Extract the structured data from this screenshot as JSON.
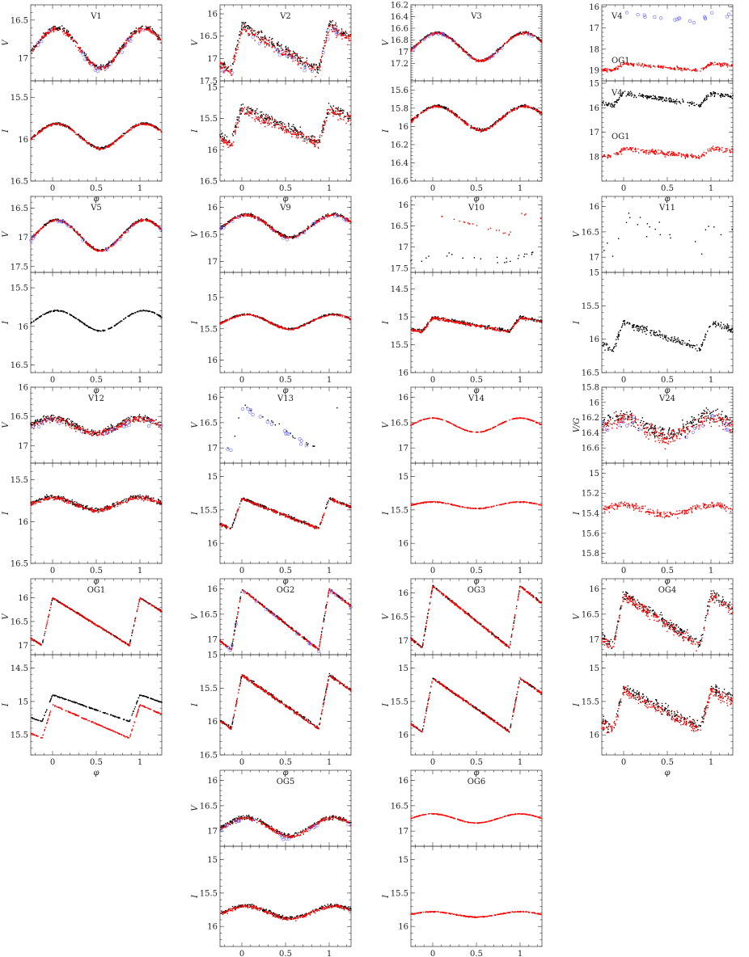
{
  "figure": {
    "phase_axis_label": "φ",
    "phase_ticks": [
      0,
      0.5,
      1
    ],
    "phase_tick_labels": [
      "0",
      "0.5",
      "1"
    ],
    "phase_range": [
      -0.25,
      1.25
    ]
  },
  "colors": {
    "dataset_a": "#000000",
    "dataset_b": "#ff0000",
    "dataset_c": "#6666ff"
  },
  "chart_data": [
    {
      "id": "V1",
      "type": "scatter",
      "title": "V1",
      "top": {
        "ylabel": "V",
        "ylim": [
          17.3,
          16.3
        ],
        "ticks": [
          16.5,
          17
        ],
        "tick_labels": [
          "16.5",
          "17"
        ],
        "mean": 16.85,
        "amp": 0.5,
        "shape": "eclipse",
        "noise": 0.05,
        "series": [
          "black",
          "red",
          "blue"
        ]
      },
      "bottom": {
        "ylabel": "I",
        "ylim": [
          16.5,
          15.3
        ],
        "ticks": [
          15.5,
          16,
          16.5
        ],
        "tick_labels": [
          "15.5",
          "16",
          "16.5"
        ],
        "mean": 15.95,
        "amp": 0.28,
        "shape": "eclipse",
        "noise": 0.02,
        "series": [
          "black",
          "red"
        ]
      }
    },
    {
      "id": "V2",
      "type": "scatter",
      "title": "V2",
      "top": {
        "ylabel": "V",
        "ylim": [
          17.5,
          15.8
        ],
        "ticks": [
          16,
          16.5,
          17,
          17.5
        ],
        "tick_labels": [
          "16",
          "16.5",
          "17",
          "17.5"
        ],
        "mean": 16.75,
        "amp": 1.0,
        "shape": "rrab",
        "noise": 0.18,
        "series": [
          "black",
          "red",
          "blue"
        ]
      },
      "bottom": {
        "ylabel": "I",
        "ylim": [
          16.5,
          14.9
        ],
        "ticks": [
          15,
          15.5,
          16,
          16.5
        ],
        "tick_labels": [
          "15",
          "15.5",
          "16",
          "16.5"
        ],
        "mean": 15.6,
        "amp": 0.55,
        "shape": "rrab",
        "noise": 0.12,
        "series": [
          "black",
          "red"
        ]
      }
    },
    {
      "id": "V3",
      "type": "scatter",
      "title": "V3",
      "top": {
        "ylabel": "V",
        "ylim": [
          17.5,
          16.2
        ],
        "ticks": [
          16.2,
          16.4,
          16.6,
          16.8,
          17,
          17.2
        ],
        "tick_labels": [
          "16.2",
          "16.4",
          "16.6",
          "16.8",
          "17",
          "17.2"
        ],
        "mean": 16.9,
        "amp": 0.45,
        "shape": "eclipse",
        "noise": 0.03,
        "series": [
          "black",
          "red",
          "blue"
        ]
      },
      "bottom": {
        "ylabel": "I",
        "ylim": [
          16.6,
          15.5
        ],
        "ticks": [
          15.6,
          15.8,
          16,
          16.2,
          16.4,
          16.6
        ],
        "tick_labels": [
          "15.6",
          "15.8",
          "16",
          "16.2",
          "16.4",
          "16.6"
        ],
        "mean": 15.9,
        "amp": 0.25,
        "shape": "eclipse",
        "noise": 0.02,
        "series": [
          "black",
          "red"
        ]
      }
    },
    {
      "id": "V4",
      "type": "scatter",
      "title": "V4",
      "subtitle": "OG1",
      "bottom_title": "V4",
      "bottom_subtitle": "OG1",
      "top": {
        "ylabel": "",
        "ylim": [
          19.5,
          15.9
        ],
        "ticks": [
          16,
          17,
          18,
          19
        ],
        "tick_labels": [
          "16",
          "17",
          "18",
          "19"
        ],
        "mean": 16.5,
        "amp": 0.4,
        "shape": "rrab",
        "noise": 0.15,
        "series": [
          "blue"
        ],
        "second": {
          "mean": 18.85,
          "amp": 0.35,
          "shape": "rrab",
          "noise": 0.12,
          "series": [
            "red"
          ]
        }
      },
      "bottom": {
        "ylabel": "",
        "ylim": [
          19,
          14.9
        ],
        "ticks": [
          15,
          16,
          17,
          18
        ],
        "tick_labels": [
          "15",
          "16",
          "17",
          "18"
        ],
        "mean": 15.65,
        "amp": 0.5,
        "shape": "rrab",
        "noise": 0.15,
        "series": [
          "black"
        ],
        "second": {
          "mean": 17.85,
          "amp": 0.35,
          "shape": "rrab",
          "noise": 0.15,
          "series": [
            "red"
          ]
        }
      }
    },
    {
      "id": "V5",
      "type": "scatter",
      "title": "V5",
      "top": {
        "ylabel": "V",
        "ylim": [
          17.6,
          16.3
        ],
        "ticks": [
          16.5,
          17,
          17.5
        ],
        "tick_labels": [
          "16.5",
          "17",
          "17.5"
        ],
        "mean": 16.95,
        "amp": 0.5,
        "shape": "eclipse",
        "noise": 0.03,
        "series": [
          "black",
          "red",
          "blue"
        ]
      },
      "bottom": {
        "ylabel": "I",
        "ylim": [
          16.6,
          15.3
        ],
        "ticks": [
          15.5,
          16,
          16.5
        ],
        "tick_labels": [
          "15.5",
          "16",
          "16.5"
        ],
        "mean": 15.92,
        "amp": 0.25,
        "shape": "eclipse",
        "noise": 0.01,
        "series": [
          "black"
        ]
      }
    },
    {
      "id": "V9",
      "type": "scatter",
      "title": "V9",
      "top": {
        "ylabel": "V",
        "ylim": [
          17.2,
          15.8
        ],
        "ticks": [
          16,
          16.5,
          17
        ],
        "tick_labels": [
          "16",
          "16.5",
          "17"
        ],
        "mean": 16.33,
        "amp": 0.4,
        "shape": "eclipse",
        "noise": 0.04,
        "series": [
          "black",
          "red",
          "blue"
        ]
      },
      "bottom": {
        "ylabel": "I",
        "ylim": [
          16.2,
          14.6
        ],
        "ticks": [
          15,
          15.5,
          16
        ],
        "tick_labels": [
          "15",
          "15.5",
          "16"
        ],
        "mean": 15.38,
        "amp": 0.22,
        "shape": "eclipse",
        "noise": 0.02,
        "series": [
          "black",
          "red"
        ]
      }
    },
    {
      "id": "V10",
      "type": "scatter",
      "title": "V10",
      "top": {
        "ylabel": "",
        "ylim": [
          17.6,
          15.8
        ],
        "ticks": [
          16,
          16.5,
          17,
          17.5
        ],
        "tick_labels": [
          "16",
          "16.5",
          "17",
          "17.5"
        ],
        "mean": 16.45,
        "amp": 0.5,
        "shape": "rrab",
        "noise": 0.05,
        "series": [
          "red"
        ],
        "sparse": true,
        "second": {
          "mean": 17.25,
          "amp": 0.2,
          "shape": "rrab",
          "noise": 0.1,
          "series": [
            "black"
          ],
          "sparse": true
        }
      },
      "bottom": {
        "ylabel": "I",
        "ylim": [
          16,
          14.2
        ],
        "ticks": [
          14.5,
          15,
          15.5,
          16
        ],
        "tick_labels": [
          "14.5",
          "15",
          "15.5",
          "16"
        ],
        "mean": 15.13,
        "amp": 0.25,
        "shape": "rrab",
        "noise": 0.04,
        "series": [
          "black",
          "red"
        ]
      }
    },
    {
      "id": "V11",
      "type": "scatter",
      "title": "V11",
      "top": {
        "ylabel": "V",
        "ylim": [
          17.3,
          15.8
        ],
        "ticks": [
          16,
          16.5,
          17
        ],
        "tick_labels": [
          "16",
          "16.5",
          "17"
        ],
        "mean": 16.55,
        "amp": 0.6,
        "shape": "rrab",
        "noise": 0.35,
        "series": [
          "black"
        ],
        "sparse": true
      },
      "bottom": {
        "ylabel": "I",
        "ylim": [
          16.5,
          15
        ],
        "ticks": [
          15,
          15.5,
          16,
          16.5
        ],
        "tick_labels": [
          "15",
          "15.5",
          "16",
          "16.5"
        ],
        "mean": 15.95,
        "amp": 0.4,
        "shape": "rrab",
        "noise": 0.08,
        "series": [
          "black"
        ]
      }
    },
    {
      "id": "V12",
      "type": "scatter",
      "title": "V12",
      "top": {
        "ylabel": "V",
        "ylim": [
          17.3,
          16
        ],
        "ticks": [
          16,
          16.5,
          17
        ],
        "tick_labels": [
          "16",
          "16.5",
          "17"
        ],
        "mean": 16.65,
        "amp": 0.25,
        "shape": "sine",
        "noise": 0.08,
        "series": [
          "black",
          "red",
          "blue"
        ]
      },
      "bottom": {
        "ylabel": "I",
        "ylim": [
          16.5,
          15.3
        ],
        "ticks": [
          15.5,
          16,
          16.5
        ],
        "tick_labels": [
          "15.5",
          "16",
          "16.5"
        ],
        "mean": 15.78,
        "amp": 0.15,
        "shape": "sine",
        "noise": 0.04,
        "series": [
          "black",
          "red"
        ]
      }
    },
    {
      "id": "V13",
      "type": "scatter",
      "title": "V13",
      "top": {
        "ylabel": "V",
        "ylim": [
          17.3,
          15.8
        ],
        "ticks": [
          16,
          16.5,
          17
        ],
        "tick_labels": [
          "16",
          "16.5",
          "17"
        ],
        "mean": 16.6,
        "amp": 0.9,
        "shape": "rrab",
        "noise": 0.08,
        "series": [
          "black",
          "blue"
        ],
        "sparse": true
      },
      "bottom": {
        "ylabel": "I",
        "ylim": [
          16.3,
          14.8
        ],
        "ticks": [
          15,
          15.5,
          16
        ],
        "tick_labels": [
          "15",
          "15.5",
          "16"
        ],
        "mean": 15.55,
        "amp": 0.45,
        "shape": "rrab",
        "noise": 0.03,
        "series": [
          "black",
          "red"
        ]
      }
    },
    {
      "id": "V14",
      "type": "scatter",
      "title": "V14",
      "top": {
        "ylabel": "V",
        "ylim": [
          17.3,
          15.8
        ],
        "ticks": [
          16,
          16.5,
          17
        ],
        "tick_labels": [
          "16",
          "16.5",
          "17"
        ],
        "mean": 16.55,
        "amp": 0.28,
        "shape": "sine",
        "noise": 0.01,
        "series": [
          "red"
        ]
      },
      "bottom": {
        "ylabel": "I",
        "ylim": [
          16.3,
          14.8
        ],
        "ticks": [
          15,
          15.5,
          16
        ],
        "tick_labels": [
          "15",
          "15.5",
          "16"
        ],
        "mean": 15.43,
        "amp": 0.1,
        "shape": "sine",
        "noise": 0.01,
        "series": [
          "red"
        ]
      }
    },
    {
      "id": "V24",
      "type": "scatter",
      "title": "V24",
      "top": {
        "ylabel": "V/G",
        "ylim": [
          16.8,
          15.8
        ],
        "ticks": [
          15.8,
          16,
          16.2,
          16.4,
          16.6
        ],
        "tick_labels": [
          "15.8",
          "16",
          "16.2",
          "16.4",
          "16.6"
        ],
        "mean": 16.3,
        "amp": 0.25,
        "shape": "sine",
        "noise": 0.15,
        "series": [
          "black",
          "red",
          "blue"
        ]
      },
      "bottom": {
        "ylabel": "I",
        "ylim": [
          15.9,
          14.9
        ],
        "ticks": [
          15,
          15.2,
          15.4,
          15.6,
          15.8
        ],
        "tick_labels": [
          "15",
          "15.2",
          "15.4",
          "15.6",
          "15.8"
        ],
        "mean": 15.37,
        "amp": 0.1,
        "shape": "sine",
        "noise": 0.05,
        "series": [
          "red"
        ]
      }
    },
    {
      "id": "OG1",
      "type": "scatter",
      "title": "OG1",
      "top": {
        "ylabel": "V",
        "ylim": [
          17.2,
          15.6
        ],
        "ticks": [
          16,
          16.5,
          17
        ],
        "tick_labels": [
          "16",
          "16.5",
          "17"
        ],
        "mean": 16.5,
        "amp": 1.0,
        "shape": "rrab",
        "noise": 0.02,
        "series": [
          "black",
          "red"
        ]
      },
      "bottom": {
        "ylabel": "I",
        "ylim": [
          15.8,
          14.3
        ],
        "ticks": [
          14.5,
          15,
          15.5
        ],
        "tick_labels": [
          "14.5",
          "15",
          "15.5"
        ],
        "mean": 15.1,
        "amp": 0.4,
        "shape": "rrab",
        "noise": 0.01,
        "series": [
          "black"
        ],
        "second": {
          "mean": 15.3,
          "amp": 0.5,
          "shape": "rrab",
          "noise": 0.01,
          "series": [
            "red"
          ]
        }
      }
    },
    {
      "id": "OG2",
      "type": "scatter",
      "title": "OG2",
      "top": {
        "ylabel": "V",
        "ylim": [
          17.3,
          15.8
        ],
        "ticks": [
          16,
          16.5,
          17
        ],
        "tick_labels": [
          "16",
          "16.5",
          "17"
        ],
        "mean": 16.6,
        "amp": 1.2,
        "shape": "rrab",
        "noise": 0.03,
        "series": [
          "black",
          "red",
          "blue"
        ]
      },
      "bottom": {
        "ylabel": "I",
        "ylim": [
          16.5,
          15
        ],
        "ticks": [
          15,
          15.5,
          16,
          16.5
        ],
        "tick_labels": [
          "15",
          "15.5",
          "16",
          "16.5"
        ],
        "mean": 15.7,
        "amp": 0.8,
        "shape": "rrab",
        "noise": 0.03,
        "series": [
          "black",
          "red"
        ]
      }
    },
    {
      "id": "OG3",
      "type": "scatter",
      "title": "OG3",
      "top": {
        "ylabel": "V",
        "ylim": [
          17.3,
          15.7
        ],
        "ticks": [
          16,
          16.5,
          17
        ],
        "tick_labels": [
          "16",
          "16.5",
          "17"
        ],
        "mean": 16.5,
        "amp": 1.3,
        "shape": "rrab",
        "noise": 0.03,
        "series": [
          "black",
          "red"
        ]
      },
      "bottom": {
        "ylabel": "I",
        "ylim": [
          16.3,
          14.8
        ],
        "ticks": [
          15,
          15.5,
          16
        ],
        "tick_labels": [
          "15",
          "15.5",
          "16"
        ],
        "mean": 15.55,
        "amp": 0.8,
        "shape": "rrab",
        "noise": 0.02,
        "series": [
          "black",
          "red"
        ]
      }
    },
    {
      "id": "OG4",
      "type": "scatter",
      "title": "OG4",
      "top": {
        "ylabel": "V",
        "ylim": [
          17.3,
          15.8
        ],
        "ticks": [
          16,
          16.5,
          17
        ],
        "tick_labels": [
          "16",
          "16.5",
          "17"
        ],
        "mean": 16.6,
        "amp": 1.0,
        "shape": "rrab",
        "noise": 0.15,
        "series": [
          "black",
          "red"
        ]
      },
      "bottom": {
        "ylabel": "I",
        "ylim": [
          16.3,
          14.8
        ],
        "ticks": [
          15,
          15.5,
          16
        ],
        "tick_labels": [
          "15",
          "15.5",
          "16"
        ],
        "mean": 15.6,
        "amp": 0.6,
        "shape": "rrab",
        "noise": 0.12,
        "series": [
          "black",
          "red"
        ]
      }
    },
    {
      "id": "OG5",
      "type": "scatter",
      "title": "OG5",
      "top": {
        "ylabel": "V",
        "ylim": [
          17.3,
          15.8
        ],
        "ticks": [
          16,
          16.5,
          17
        ],
        "tick_labels": [
          "16",
          "16.5",
          "17"
        ],
        "mean": 16.9,
        "amp": 0.35,
        "shape": "eclipse",
        "noise": 0.06,
        "series": [
          "black",
          "red",
          "blue"
        ]
      },
      "bottom": {
        "ylabel": "I",
        "ylim": [
          16.3,
          14.8
        ],
        "ticks": [
          15,
          15.5,
          16
        ],
        "tick_labels": [
          "15",
          "15.5",
          "16"
        ],
        "mean": 15.78,
        "amp": 0.18,
        "shape": "eclipse",
        "noise": 0.04,
        "series": [
          "black",
          "red"
        ]
      }
    },
    {
      "id": "OG6",
      "type": "scatter",
      "title": "OG6",
      "top": {
        "ylabel": "",
        "ylim": [
          17.3,
          15.8
        ],
        "ticks": [
          16,
          16.5,
          17
        ],
        "tick_labels": [
          "16",
          "16.5",
          "17"
        ],
        "mean": 16.75,
        "amp": 0.18,
        "shape": "sine",
        "noise": 0.01,
        "series": [
          "red"
        ]
      },
      "bottom": {
        "ylabel": "I",
        "ylim": [
          16.3,
          14.8
        ],
        "ticks": [
          15,
          15.5,
          16
        ],
        "tick_labels": [
          "15",
          "15.5",
          "16"
        ],
        "mean": 15.82,
        "amp": 0.08,
        "shape": "sine",
        "noise": 0.01,
        "series": [
          "red"
        ]
      }
    }
  ]
}
